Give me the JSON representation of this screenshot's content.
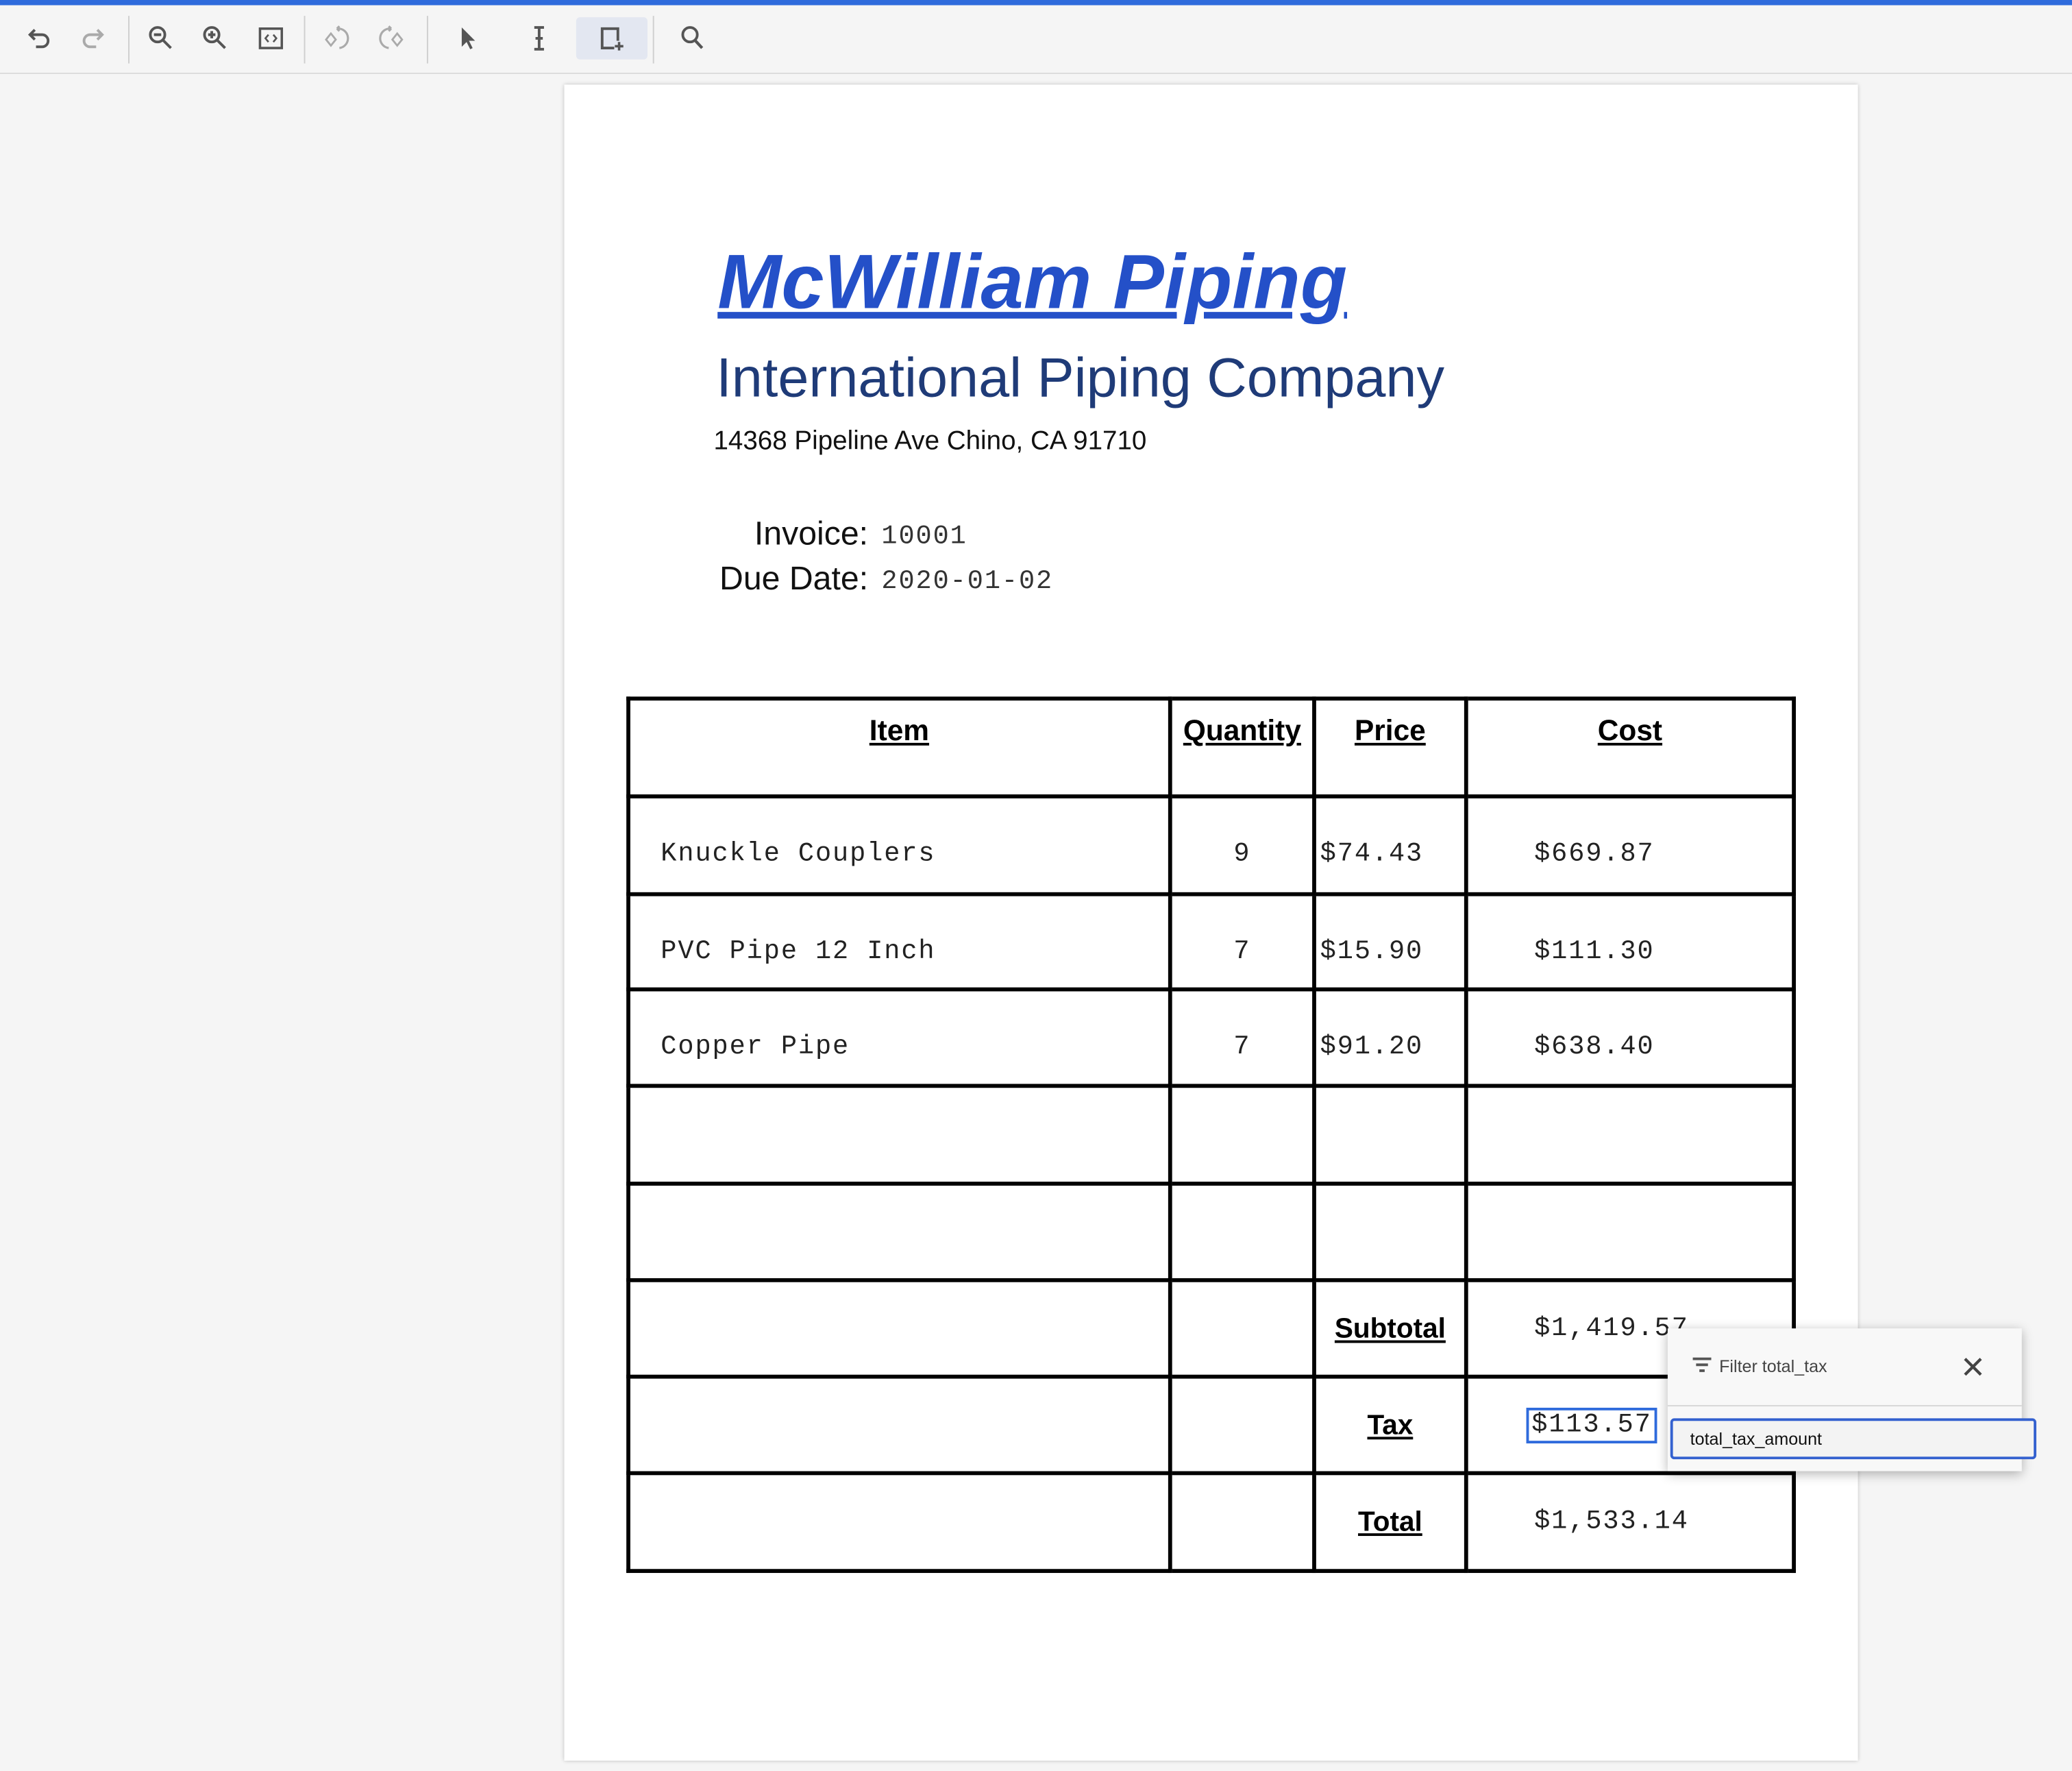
{
  "toolbar": {
    "buttons": [
      {
        "name": "undo-icon"
      },
      {
        "name": "redo-icon"
      },
      {
        "name": "zoom-out-icon"
      },
      {
        "name": "zoom-in-icon"
      },
      {
        "name": "fit-page-icon"
      },
      {
        "name": "rotate-left-icon"
      },
      {
        "name": "rotate-right-icon"
      },
      {
        "name": "pointer-icon"
      },
      {
        "name": "text-select-icon"
      },
      {
        "name": "draw-box-icon",
        "active": true
      },
      {
        "name": "search-icon"
      }
    ],
    "accent": "#2f6bdc"
  },
  "document": {
    "company": "McWilliam Piping",
    "subtitle": "International Piping Company",
    "address": "14368 Pipeline Ave Chino, CA 91710",
    "invoice_label": "Invoice:",
    "invoice_number": "10001",
    "due_label": "Due Date:",
    "due_date": "2020-01-02",
    "table": {
      "headers": [
        "Item",
        "Quantity",
        "Price",
        "Cost"
      ],
      "rows": [
        {
          "item": "Knuckle Couplers",
          "quantity": "9",
          "price": "$74.43",
          "cost": "$669.87"
        },
        {
          "item": "PVC Pipe 12 Inch",
          "quantity": "7",
          "price": "$15.90",
          "cost": "$111.30"
        },
        {
          "item": "Copper Pipe",
          "quantity": "7",
          "price": "$91.20",
          "cost": "$638.40"
        }
      ],
      "subtotal_label": "Subtotal",
      "subtotal": "$1,419.57",
      "tax_label": "Tax",
      "tax": "$113.57",
      "total_label": "Total",
      "total": "$1,533.14"
    },
    "title_color": "#2450c8"
  },
  "popup": {
    "title": "Filter total_tax",
    "value": "total_tax_amount"
  }
}
